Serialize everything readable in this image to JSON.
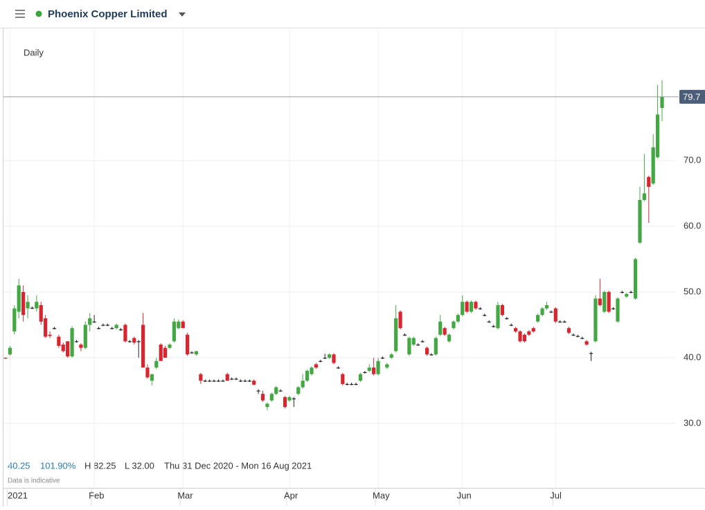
{
  "chart_data": {
    "type": "candlestick",
    "title": "Phoenix Copper Limited",
    "interval": "Daily",
    "categories": [
      null,
      "2021",
      null,
      null,
      null,
      null,
      null,
      null,
      null,
      null,
      null,
      null,
      null,
      null,
      null,
      null,
      null,
      null,
      null,
      null,
      "Feb",
      null,
      null,
      null,
      null,
      null,
      null,
      null,
      null,
      null,
      null,
      null,
      null,
      null,
      null,
      null,
      null,
      null,
      null,
      null,
      "Mar",
      null,
      null,
      null,
      null,
      null,
      null,
      null,
      null,
      null,
      null,
      null,
      null,
      null,
      null,
      null,
      null,
      null,
      null,
      null,
      null,
      null,
      null,
      null,
      "Apr",
      null,
      null,
      null,
      null,
      null,
      null,
      null,
      null,
      null,
      null,
      null,
      null,
      null,
      null,
      null,
      null,
      null,
      null,
      null,
      "May",
      null,
      null,
      null,
      null,
      null,
      null,
      null,
      null,
      null,
      null,
      null,
      null,
      null,
      null,
      null,
      null,
      null,
      null,
      "Jun",
      null,
      null,
      null,
      null,
      null,
      null,
      null,
      null,
      null,
      null,
      null,
      null,
      null,
      null,
      null,
      null,
      null,
      null,
      null,
      null,
      "Jul",
      null,
      null,
      null,
      null,
      null,
      null,
      null,
      null,
      null,
      null,
      null,
      null,
      null,
      null,
      null,
      null,
      null,
      null,
      null,
      null,
      null,
      null,
      null,
      null
    ],
    "open": [
      40,
      40.5,
      44,
      47,
      50,
      47.5,
      47.6,
      47.5,
      48,
      46,
      43.5,
      44.5,
      43.2,
      42,
      42.5,
      40.2,
      42.5,
      42,
      41.5,
      45,
      45.5,
      44.5,
      45,
      45,
      44.5,
      44.5,
      44.3,
      45,
      42.5,
      43,
      42.5,
      45,
      38.5,
      36.5,
      38.5,
      42,
      41.5,
      41.5,
      42.5,
      44.5,
      45.5,
      43.5,
      40.8,
      40.5,
      37.5,
      36.5,
      36.5,
      36.5,
      36.5,
      36.5,
      37.5,
      36.8,
      36.8,
      36.5,
      36.5,
      36.5,
      36.5,
      35,
      34.5,
      32.5,
      33.5,
      34.5,
      35,
      34,
      33.5,
      33.8,
      34.5,
      35.5,
      36.5,
      37.5,
      39,
      39.5,
      40,
      40,
      40.5,
      38.5,
      37.5,
      36,
      36,
      36,
      36.5,
      37.8,
      38,
      38.5,
      37.5,
      40,
      38.5,
      40,
      41,
      47,
      43.5,
      40.5,
      42,
      42,
      42.5,
      41.5,
      40.5,
      40.5,
      43.5,
      44.5,
      42.5,
      44.5,
      45.5,
      46.5,
      48.5,
      47,
      48.5,
      47.5,
      46.5,
      45.5,
      44.8,
      44.5,
      48,
      46,
      45,
      44.5,
      44,
      43.5,
      44,
      44.5,
      45.5,
      46.5,
      47.5,
      47,
      47.5,
      45.5,
      45.5,
      44.5,
      43.5,
      43.3,
      43,
      42.5,
      40.7,
      42.5,
      49,
      47,
      50,
      47.5,
      45.5,
      50,
      49.3,
      50,
      49,
      57.5,
      64,
      67.5,
      66.5,
      70.5,
      78
    ],
    "high": [
      40,
      41.8,
      48,
      52,
      51,
      49.5,
      47.8,
      49.5,
      48.5,
      46.5,
      44,
      44.7,
      43.5,
      42.3,
      42.5,
      44.8,
      42.7,
      42.2,
      45.5,
      46.8,
      46.5,
      44.7,
      45.2,
      45.2,
      44.7,
      45.2,
      44.5,
      45.2,
      42.7,
      43.2,
      42.7,
      46.8,
      39,
      37.5,
      40,
      42.2,
      41.8,
      42.2,
      46,
      45.8,
      45.7,
      43.8,
      41,
      41,
      37.7,
      36.7,
      36.7,
      36.7,
      36.7,
      36.7,
      37.7,
      37,
      37,
      36.7,
      36.7,
      36.7,
      36.7,
      35.2,
      35,
      33.2,
      34.7,
      35.7,
      35.2,
      34.2,
      34.2,
      34,
      35.7,
      37.5,
      38.2,
      38.7,
      39.2,
      39.7,
      40.6,
      40.7,
      40.7,
      38.7,
      37.7,
      36.2,
      36.2,
      36.2,
      37.7,
      38,
      39,
      40,
      40,
      40.2,
      39.2,
      40.7,
      48,
      47.2,
      43.7,
      43.2,
      43.2,
      42.2,
      42.7,
      41.7,
      40.7,
      43.2,
      46.5,
      44.7,
      43.7,
      45.7,
      46.7,
      49.5,
      48.7,
      48.7,
      48.7,
      47.7,
      46.7,
      45.7,
      45,
      48.5,
      48.2,
      46.2,
      45.2,
      44.7,
      44.2,
      43.7,
      44.2,
      44.7,
      46.7,
      47.7,
      48.5,
      47.2,
      47.7,
      45.7,
      45.7,
      44.7,
      43.7,
      43.5,
      43.2,
      42.7,
      40.9,
      49.5,
      52,
      50.2,
      50.2,
      47.7,
      49.2,
      50.2,
      49.9,
      50.2,
      55.2,
      66,
      71,
      67.7,
      74,
      81.5,
      82.25
    ],
    "low": [
      39.8,
      40.3,
      43.5,
      46,
      45.5,
      46,
      47.4,
      47,
      45,
      43,
      43,
      44.3,
      41.5,
      40.8,
      40,
      40,
      42.3,
      41,
      41.3,
      44,
      45.3,
      44.3,
      44.8,
      44.8,
      44.3,
      44.3,
      44.1,
      42.3,
      42.3,
      42,
      40,
      38.5,
      36.8,
      35.8,
      38.3,
      39.5,
      40,
      41.3,
      42.3,
      44.3,
      44.5,
      40.3,
      40.6,
      40.3,
      36,
      36.3,
      36.3,
      36.3,
      36.3,
      36.3,
      36.5,
      36.6,
      36.6,
      36.3,
      36.3,
      36.3,
      35.8,
      34.5,
      33.3,
      32,
      33.3,
      34.3,
      34.8,
      32.3,
      33.3,
      32.5,
      34.3,
      35.3,
      36.3,
      37.3,
      38.3,
      39.3,
      39.8,
      39.8,
      39,
      38.3,
      35.8,
      35.8,
      35.8,
      35.8,
      36.3,
      37.6,
      37.8,
      37.3,
      37.3,
      39.8,
      38.3,
      39.8,
      40.8,
      44.3,
      43.3,
      40.3,
      41.8,
      41.8,
      42.3,
      40.3,
      40.3,
      40.3,
      43.3,
      43.3,
      42.3,
      44.3,
      45.3,
      46.3,
      46.8,
      46.8,
      47.3,
      47.3,
      46.3,
      45.3,
      44.6,
      44.3,
      46.3,
      45.8,
      44.8,
      43.8,
      42.3,
      42.3,
      43.3,
      43.8,
      45.3,
      46.3,
      47.3,
      46.8,
      45.3,
      45.3,
      45.3,
      43.6,
      43.3,
      43.1,
      42.8,
      41.8,
      39.5,
      42.3,
      47.8,
      46.8,
      46.8,
      47.3,
      45.3,
      49.8,
      49.1,
      49.8,
      48.8,
      57.3,
      63.8,
      60.5,
      66.3,
      70.3,
      76
    ],
    "close": [
      39.9,
      41.5,
      47.5,
      51,
      46.5,
      48.5,
      47.6,
      48.5,
      45.5,
      43.2,
      43.3,
      44.5,
      41.8,
      41,
      40.2,
      44.5,
      42.5,
      41.5,
      45,
      46,
      45.5,
      44.5,
      45,
      45,
      44.5,
      45,
      44.3,
      42.5,
      42.5,
      42.3,
      42.5,
      38.5,
      37,
      37.5,
      39.5,
      39.5,
      40,
      42,
      45.5,
      45.5,
      44.5,
      40.5,
      40.8,
      41,
      36.5,
      36.5,
      36.5,
      36.5,
      36.5,
      36.5,
      36.5,
      36.8,
      36.8,
      36.5,
      36.5,
      36.5,
      35.9,
      35,
      33.5,
      33,
      34.5,
      35.5,
      35,
      32.5,
      34,
      33.8,
      35.5,
      36.5,
      38,
      38.5,
      38.5,
      39.5,
      40,
      40.5,
      39.2,
      38.5,
      36,
      36,
      36,
      36,
      37.5,
      37.8,
      38.5,
      37.5,
      39.5,
      40,
      39,
      40.5,
      46,
      44.5,
      43.5,
      43,
      43,
      42,
      42.5,
      40.5,
      40.5,
      43,
      45.5,
      43.5,
      43.5,
      45.5,
      46.5,
      48.5,
      47,
      48.5,
      47.5,
      47.5,
      46.5,
      45.5,
      44.8,
      48,
      46.5,
      46,
      45,
      44,
      42.5,
      42.5,
      43.5,
      44,
      46.5,
      47.5,
      48,
      47,
      45.5,
      45.5,
      45.5,
      43.8,
      43.5,
      43.3,
      43,
      42,
      40.7,
      49,
      48,
      50,
      47,
      47.5,
      49,
      50,
      49.7,
      50,
      55,
      64,
      65,
      66,
      72,
      77,
      79.7
    ],
    "up_color": "#43a843",
    "down_color": "#d7262f",
    "ylim": [
      20.2,
      90
    ],
    "yticks": [
      {
        "value": 30,
        "label": "30.0"
      },
      {
        "value": 40,
        "label": "40.0"
      },
      {
        "value": 50,
        "label": "50.0"
      },
      {
        "value": 60,
        "label": "60.0"
      },
      {
        "value": 70,
        "label": "70.0"
      }
    ],
    "grid": true,
    "last_price": 79.7,
    "stats": {
      "change": 40.25,
      "change_pct": {
        "value": 101.9,
        "label": "101.90%"
      },
      "high": {
        "value": 82.25,
        "label": "H 82.25"
      },
      "low": {
        "value": 32,
        "label": "L 32.00"
      },
      "range": "Thu 31 Dec 2020 - Mon 16 Aug 2021",
      "note": "Data is indicative"
    }
  }
}
